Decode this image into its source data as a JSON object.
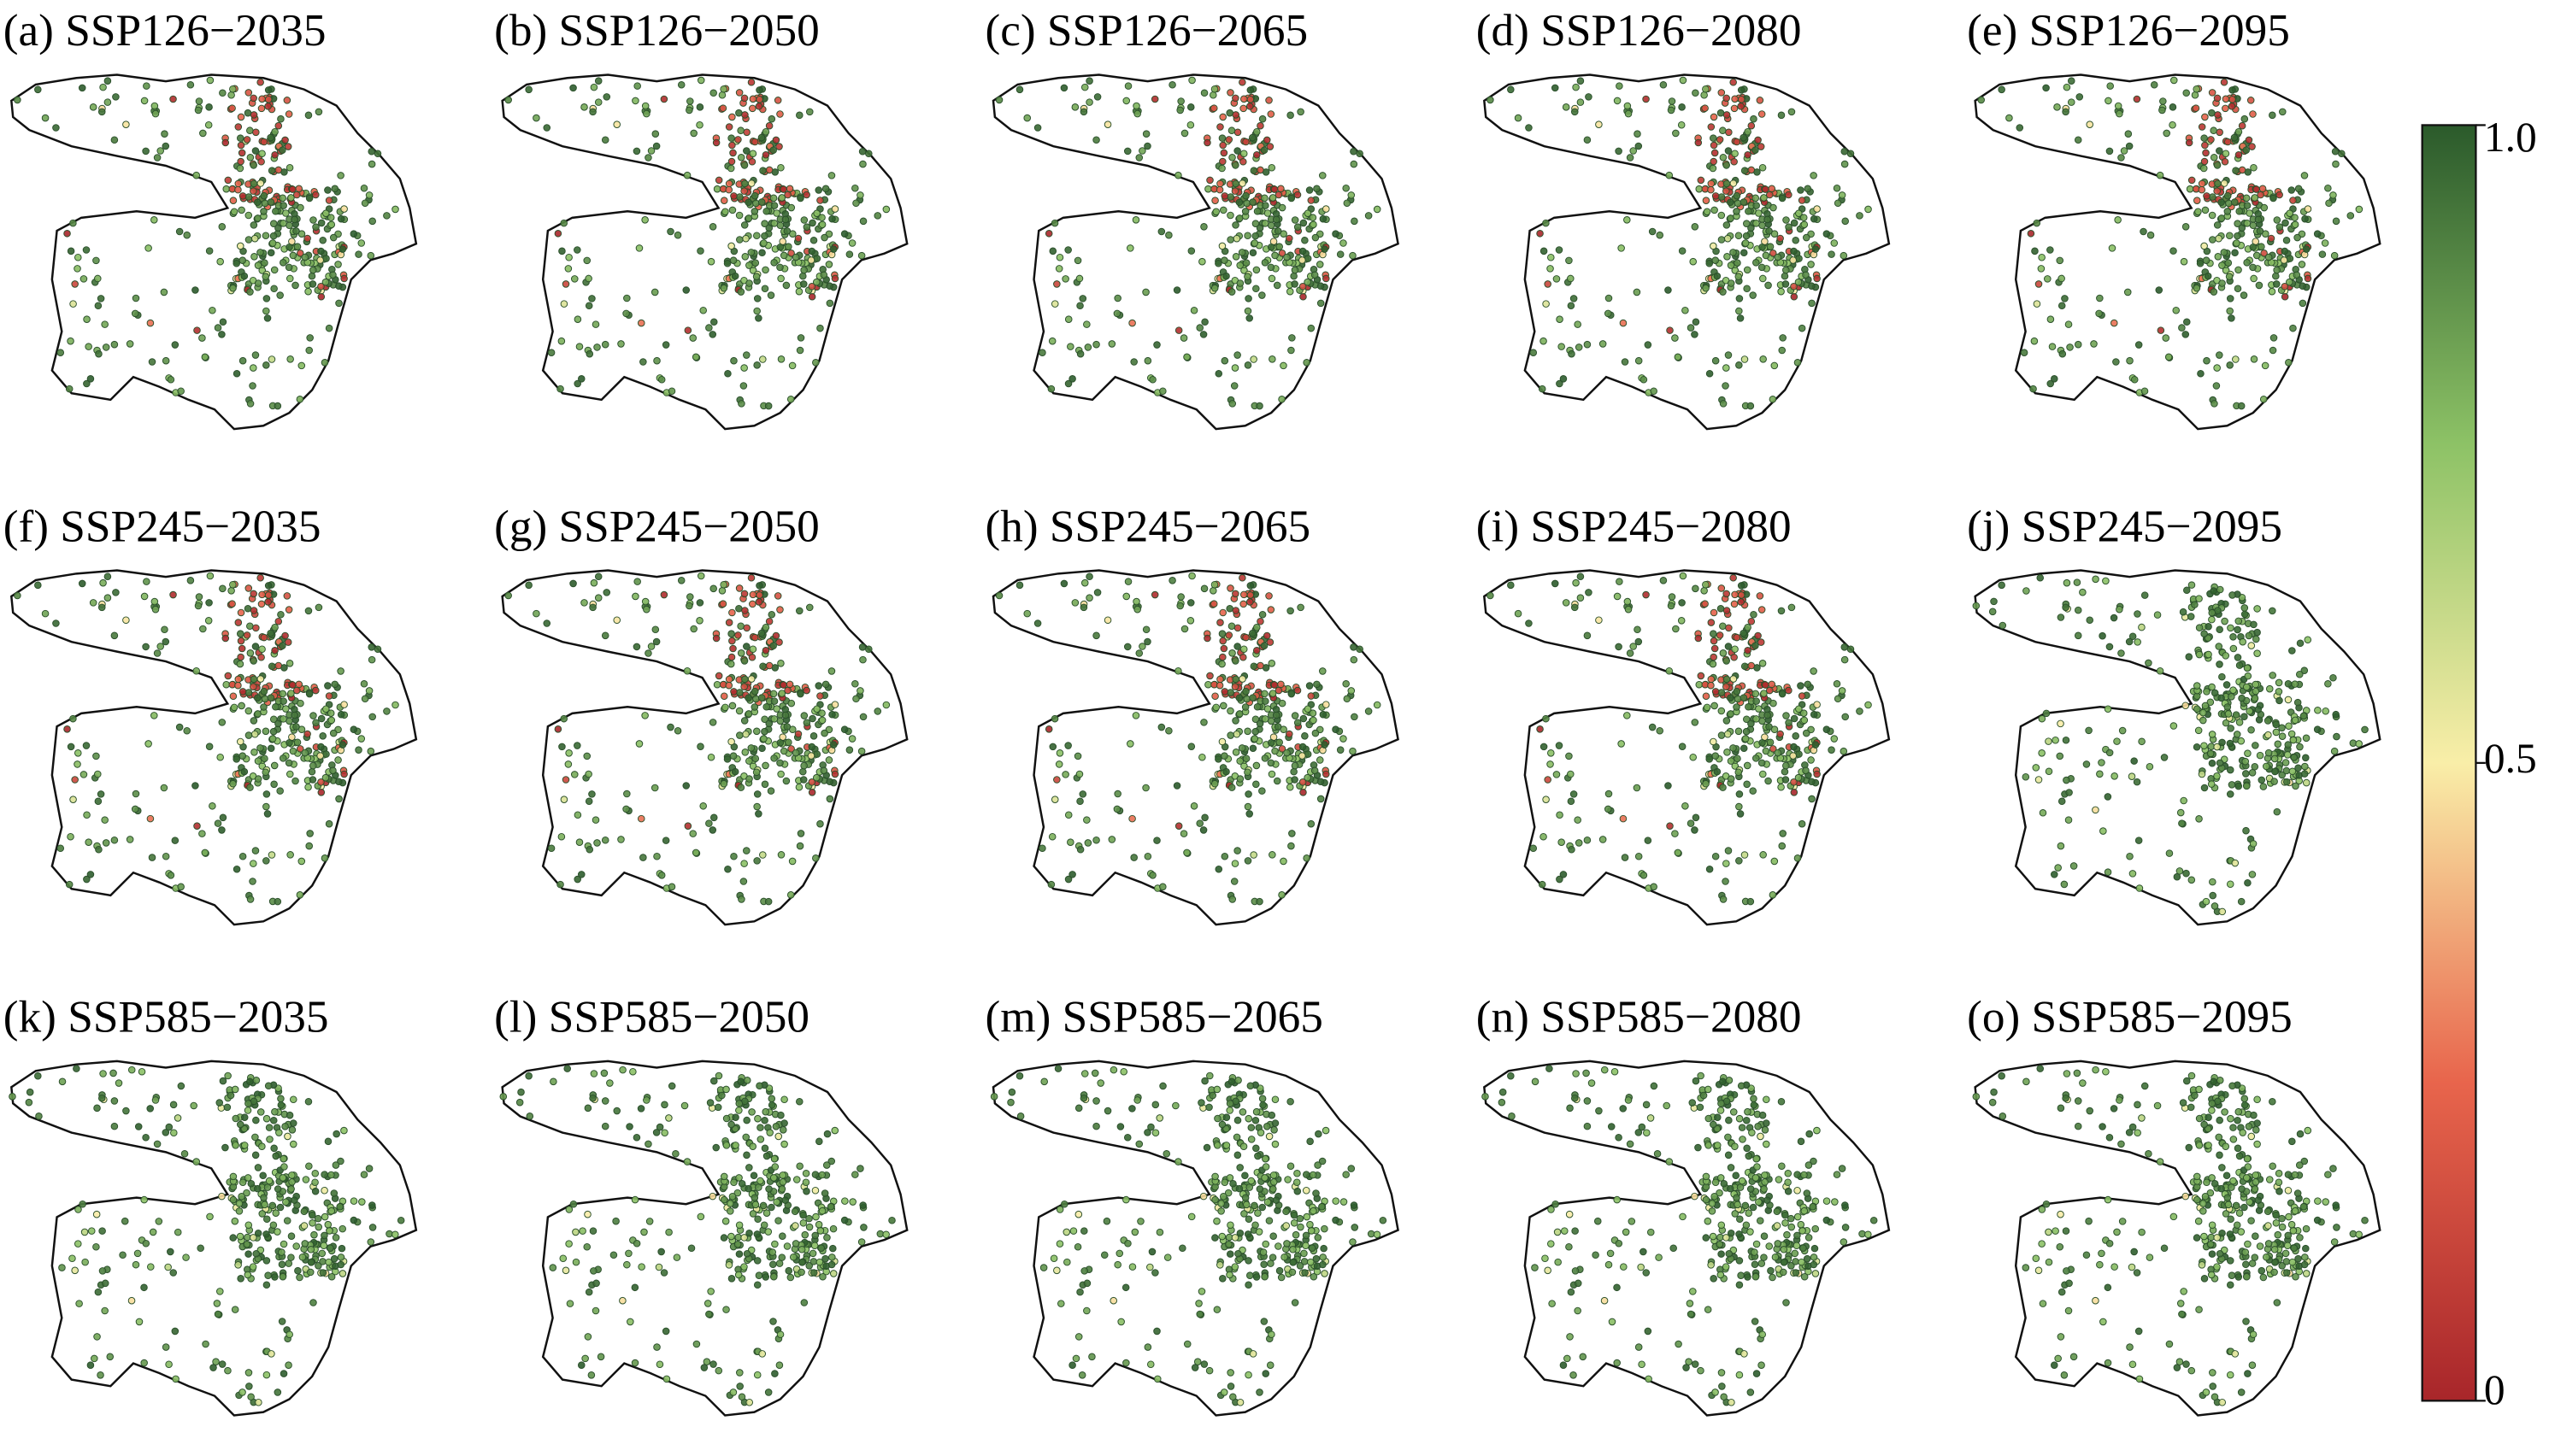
{
  "panels": [
    {
      "title": "(a) SSP126−2035"
    },
    {
      "title": "(b) SSP126−2050"
    },
    {
      "title": "(c) SSP126−2065"
    },
    {
      "title": "(d) SSP126−2080"
    },
    {
      "title": "(e) SSP126−2095"
    },
    {
      "title": "(f) SSP245−2035"
    },
    {
      "title": "(g) SSP245−2050"
    },
    {
      "title": "(h) SSP245−2065"
    },
    {
      "title": "(i) SSP245−2080"
    },
    {
      "title": "(j) SSP245−2095"
    },
    {
      "title": "(k) SSP585−2035"
    },
    {
      "title": "(l) SSP585−2050"
    },
    {
      "title": "(m) SSP585−2065"
    },
    {
      "title": "(n) SSP585−2080"
    },
    {
      "title": "(o) SSP585−2095"
    }
  ],
  "colorbar": {
    "lim": [
      0,
      1
    ],
    "ticks": [
      0,
      0.5,
      {
        "value": 1,
        "label": "1.0"
      }
    ],
    "colors": [
      "#a8262a",
      "#e8654c",
      "#f9eea8",
      "#8dc266",
      "#2b5a2b"
    ]
  }
}
